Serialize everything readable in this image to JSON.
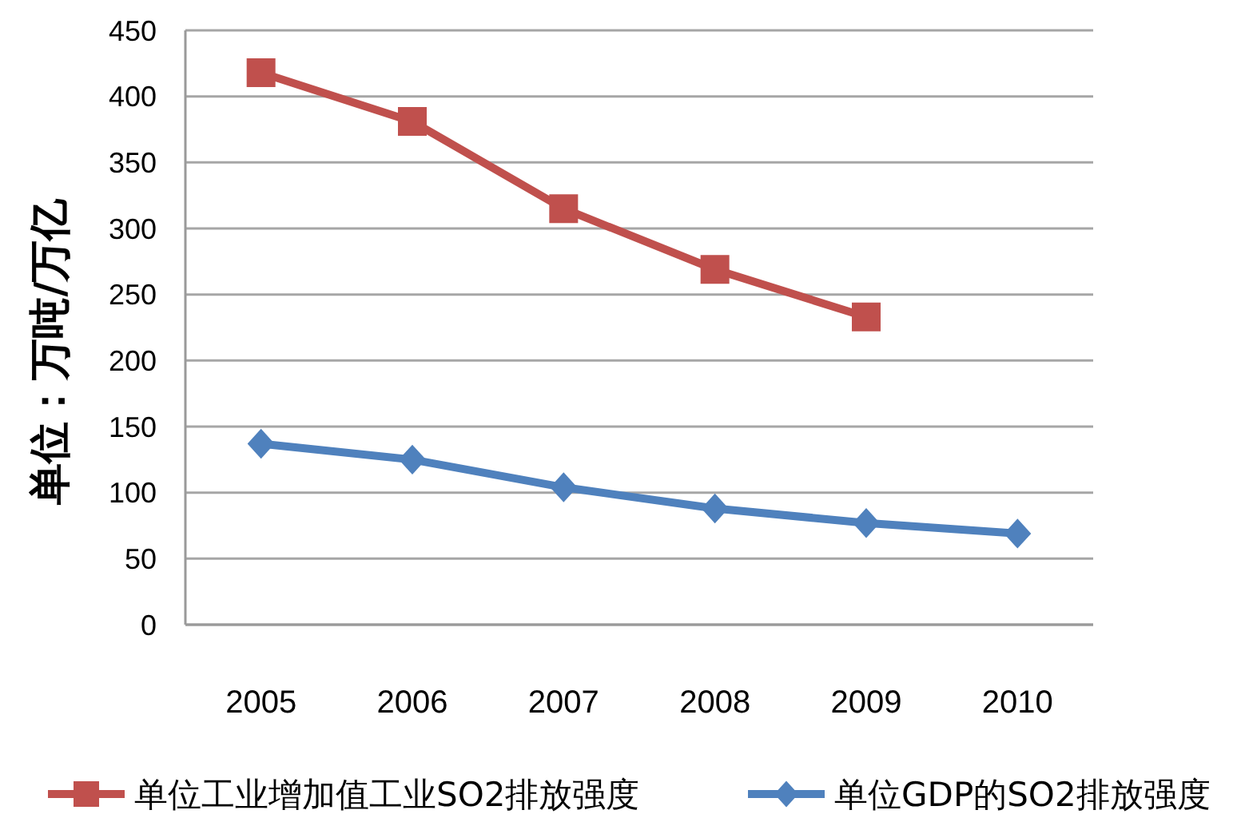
{
  "chart_data": {
    "type": "line",
    "ylabel": "单位：万吨/万亿",
    "categories": [
      "2005",
      "2006",
      "2007",
      "2008",
      "2009",
      "2010"
    ],
    "series": [
      {
        "name": "单位工业增加值工业SO2排放强度",
        "color": "#c0504d",
        "marker": "square",
        "values": [
          418,
          381,
          315,
          269,
          233,
          null
        ]
      },
      {
        "name": "单位GDP的SO2排放强度",
        "color": "#4f81bd",
        "marker": "diamond",
        "values": [
          137,
          125,
          104,
          88,
          77,
          69
        ]
      }
    ],
    "ylim": [
      0,
      450
    ],
    "yticks": [
      0,
      50,
      100,
      150,
      200,
      250,
      300,
      350,
      400,
      450
    ],
    "grid": "y",
    "legend": "bottom",
    "line_style": "solid"
  }
}
